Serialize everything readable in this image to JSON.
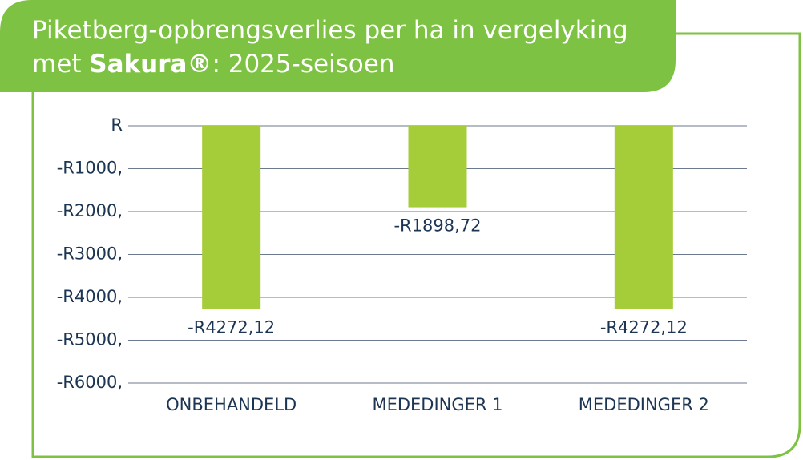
{
  "chart_data": {
    "type": "bar",
    "title": [
      "Piketberg-opbrengsverlies per ha in vergelyking",
      "met",
      "Sakura®",
      ": 2025-seisoen"
    ],
    "categories": [
      "ONBEHANDELD",
      "MEDEDINGER 1",
      "MEDEDINGER 2"
    ],
    "values": [
      -4272.12,
      -1898.72,
      -4272.12
    ],
    "value_labels": [
      "-R4272,12",
      "-R1898,72",
      "-R4272,12"
    ],
    "color": "#a5cd39",
    "ylim": [
      -6000,
      0
    ],
    "yticks": [
      {
        "value": 0,
        "label": "R"
      },
      {
        "value": -1000,
        "label": "-R1000,"
      },
      {
        "value": -2000,
        "label": "-R2000,"
      },
      {
        "value": -3000,
        "label": "-R3000,"
      },
      {
        "value": -4000,
        "label": "-R4000,"
      },
      {
        "value": -5000,
        "label": "-R5000,"
      },
      {
        "value": -6000,
        "label": "-R6000,"
      }
    ],
    "grid": true
  }
}
